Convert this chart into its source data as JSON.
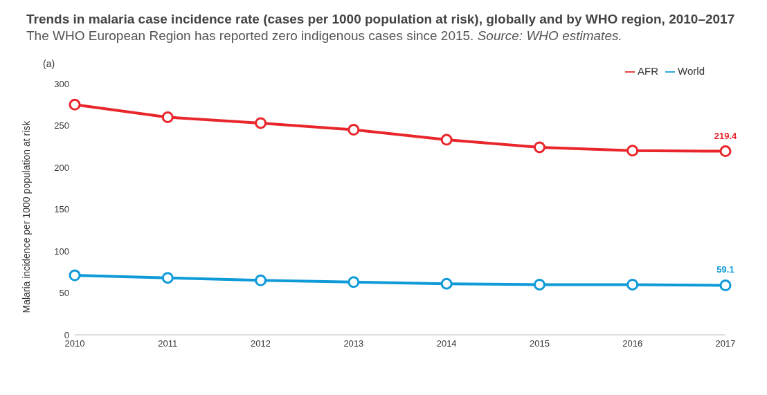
{
  "chart_data": {
    "type": "line",
    "title": "Trends in malaria case incidence rate (cases per 1000 population at risk), globally and by WHO region, 2010–2017",
    "subtitle": "The WHO European Region has reported zero indigenous cases since 2015.",
    "annotations": [
      "Source: WHO estimates.",
      "(a)"
    ],
    "ylabel": "Malaria incidence per 1000 population at risk",
    "categories": [
      "2010",
      "2011",
      "2012",
      "2013",
      "2014",
      "2015",
      "2016",
      "2017"
    ],
    "series": [
      {
        "name": "AFR",
        "color": "#e8262b",
        "values": [
          275,
          260,
          253,
          245,
          233,
          224,
          220,
          219.4
        ],
        "value_labels": [
          null,
          null,
          null,
          null,
          null,
          null,
          null,
          "219.4"
        ]
      },
      {
        "name": "World",
        "color": "#0f9ad8",
        "values": [
          71,
          68,
          65,
          63,
          61,
          60,
          60,
          59.1
        ],
        "value_labels": [
          null,
          null,
          null,
          null,
          null,
          null,
          null,
          "59.1"
        ]
      }
    ],
    "ylim": [
      0,
      300
    ],
    "yticks": [
      0,
      50,
      100,
      150,
      200,
      250,
      300
    ],
    "grid": false,
    "legend": "top right",
    "marker": "circle",
    "line_style": "solid"
  }
}
